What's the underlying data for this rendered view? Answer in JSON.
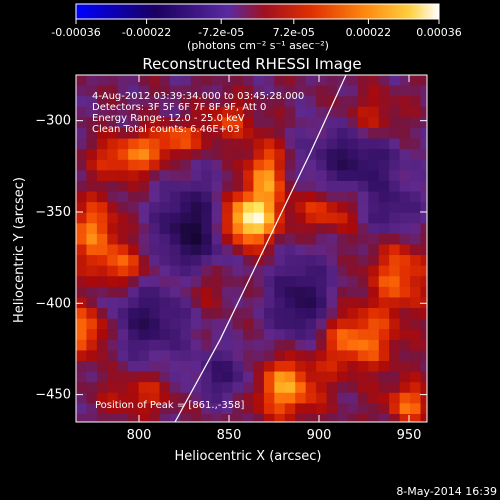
{
  "colorbar": {
    "tick_labels": [
      "-0.00036",
      "-0.00022",
      "-7.2e-05",
      "7.2e-05",
      "0.00022",
      "0.00036"
    ],
    "tick_values": [
      -0.00036,
      -0.00022,
      -7.2e-05,
      7.2e-05,
      0.00022,
      0.00036
    ],
    "range": [
      -0.00036,
      0.00036
    ],
    "unit_text": "(photons cm⁻² s⁻¹ asec⁻²)",
    "colors": [
      "#000000",
      "#3a0a6a",
      "#7a2a9a",
      "#c01818",
      "#ff5a00",
      "#ffa020",
      "#ffe060",
      "#ffffff"
    ]
  },
  "chart_data": {
    "type": "heatmap",
    "title": "Reconstructed RHESSI Image",
    "xlabel": "Heliocentric X (arcsec)",
    "ylabel": "Heliocentric Y (arcsec)",
    "xlim": [
      765,
      960
    ],
    "ylim": [
      -465,
      -275
    ],
    "x_ticks": [
      800,
      850,
      900,
      950
    ],
    "x_tick_labels": [
      "800",
      "850",
      "900",
      "950"
    ],
    "y_ticks": [
      -300,
      -350,
      -400,
      -450
    ],
    "y_tick_labels": [
      "−300",
      "−350",
      "−400",
      "−450"
    ],
    "peak": {
      "x": 861,
      "y": -358,
      "label": "Position of Peak = [861.,-358]"
    },
    "annotations": [
      "4-Aug-2012 03:39:34.000 to 03:45:28.000",
      "Detectors: 3F 5F 6F 7F 8F 9F, Att 0",
      "Energy Range: 12.0 - 25.0 keV",
      "Clean      Total counts: 6.46E+03"
    ],
    "limb_curve": [
      [
        820,
        -465
      ],
      [
        845,
        -420
      ],
      [
        872,
        -365
      ],
      [
        895,
        -318
      ],
      [
        915,
        -275
      ]
    ],
    "sources": [
      {
        "x": 860,
        "y": -355,
        "amp": 1.0,
        "sx": 11,
        "sy": 10
      },
      {
        "x": 870,
        "y": -330,
        "amp": 0.62,
        "sx": 8,
        "sy": 13
      },
      {
        "x": 795,
        "y": -320,
        "amp": 0.55,
        "sx": 14,
        "sy": 8
      },
      {
        "x": 820,
        "y": -310,
        "amp": 0.45,
        "sx": 12,
        "sy": 6
      },
      {
        "x": 775,
        "y": -360,
        "amp": 0.55,
        "sx": 10,
        "sy": 12
      },
      {
        "x": 790,
        "y": -380,
        "amp": 0.45,
        "sx": 12,
        "sy": 8
      },
      {
        "x": 770,
        "y": -415,
        "amp": 0.6,
        "sx": 10,
        "sy": 10
      },
      {
        "x": 880,
        "y": -445,
        "amp": 0.72,
        "sx": 14,
        "sy": 12
      },
      {
        "x": 920,
        "y": -420,
        "amp": 0.58,
        "sx": 16,
        "sy": 12
      },
      {
        "x": 945,
        "y": -385,
        "amp": 0.5,
        "sx": 12,
        "sy": 14
      },
      {
        "x": 905,
        "y": -350,
        "amp": 0.42,
        "sx": 14,
        "sy": 8
      },
      {
        "x": 930,
        "y": -300,
        "amp": 0.38,
        "sx": 12,
        "sy": 10
      },
      {
        "x": 950,
        "y": -455,
        "amp": 0.5,
        "sx": 10,
        "sy": 8
      },
      {
        "x": 835,
        "y": -390,
        "amp": 0.3,
        "sx": 10,
        "sy": 10
      },
      {
        "x": 800,
        "y": -450,
        "amp": 0.32,
        "sx": 14,
        "sy": 8
      },
      {
        "x": 850,
        "y": -300,
        "amp": 0.35,
        "sx": 10,
        "sy": 8
      }
    ],
    "negative_sources": [
      {
        "x": 830,
        "y": -360,
        "amp": 0.7,
        "sx": 14,
        "sy": 18
      },
      {
        "x": 920,
        "y": -320,
        "amp": 0.55,
        "sx": 18,
        "sy": 14
      },
      {
        "x": 890,
        "y": -400,
        "amp": 0.6,
        "sx": 12,
        "sy": 18
      },
      {
        "x": 805,
        "y": -410,
        "amp": 0.5,
        "sx": 16,
        "sy": 14
      },
      {
        "x": 940,
        "y": -350,
        "amp": 0.4,
        "sx": 12,
        "sy": 10
      },
      {
        "x": 850,
        "y": -440,
        "amp": 0.45,
        "sx": 14,
        "sy": 10
      }
    ]
  },
  "footer": {
    "date": "8-May-2014 16:39"
  }
}
